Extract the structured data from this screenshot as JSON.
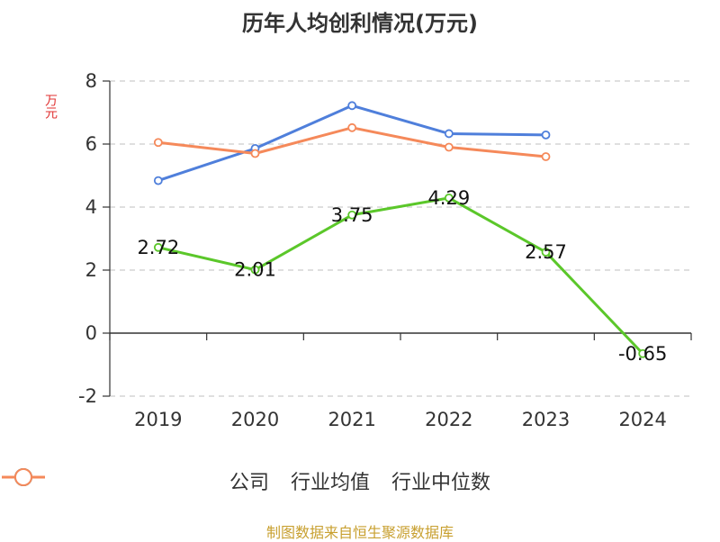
{
  "chart_data": {
    "type": "line",
    "title": "历年人均创利情况(万元)",
    "ylabel": "万元",
    "xlabel": "",
    "categories": [
      "2019",
      "2020",
      "2021",
      "2022",
      "2023",
      "2024"
    ],
    "ylim": [
      -2,
      8
    ],
    "yticks": [
      "8",
      "6",
      "4",
      "2",
      "0",
      "-2"
    ],
    "grid": true,
    "legend_position": "bottom",
    "series": [
      {
        "name": "公司",
        "color": "#5bc72a",
        "values": [
          2.72,
          2.01,
          3.75,
          4.29,
          2.57,
          -0.65
        ],
        "labels": [
          "2.72",
          "2.01",
          "3.75",
          "4.29",
          "2.57",
          "-0.65"
        ]
      },
      {
        "name": "行业均值",
        "color": "#4f7fdb",
        "values": [
          4.84,
          5.86,
          7.22,
          6.33,
          6.29,
          null
        ]
      },
      {
        "name": "行业中位数",
        "color": "#f5895a",
        "values": [
          6.05,
          5.7,
          6.52,
          5.9,
          5.6,
          null
        ]
      }
    ]
  },
  "footer": {
    "source": "制图数据来自恒生聚源数据库"
  }
}
